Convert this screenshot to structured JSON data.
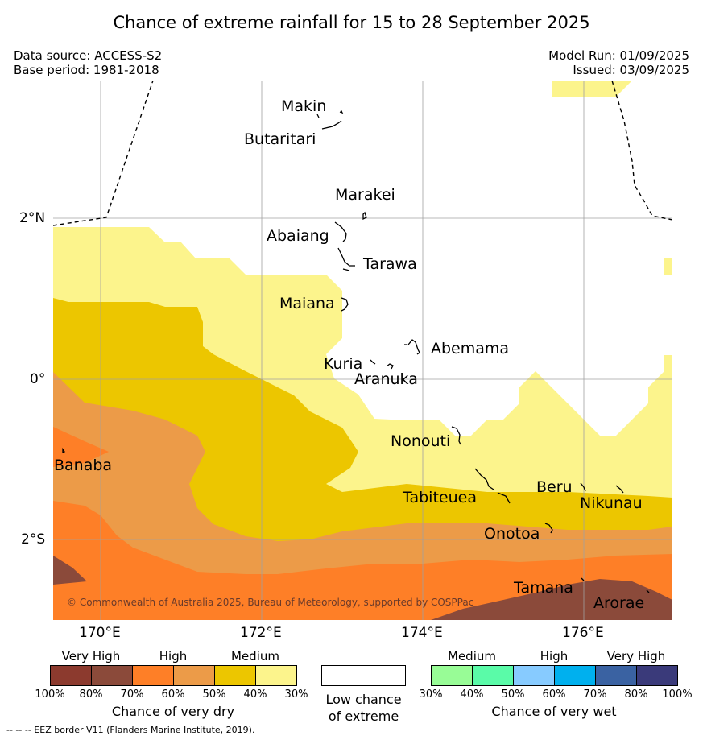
{
  "title": "Chance of extreme rainfall for 15 to 28 September 2025",
  "data_source": "Data source: ACCESS-S2",
  "base_period": "Base period: 1981-2018",
  "model_run": "Model Run: 01/09/2025",
  "issued": "Issued: 03/09/2025",
  "lat_labels": {
    "n2": "2°N",
    "eq": "0°",
    "s2": "2°S"
  },
  "lon_labels": {
    "e170": "170°E",
    "e172": "172°E",
    "e174": "174°E",
    "e176": "176°E"
  },
  "places": {
    "makin": "Makin",
    "butaritari": "Butaritari",
    "marakei": "Marakei",
    "abaiang": "Abaiang",
    "tarawa": "Tarawa",
    "maiana": "Maiana",
    "abemama": "Abemama",
    "kuria": "Kuria",
    "aranuka": "Aranuka",
    "nonouti": "Nonouti",
    "banaba": "Banaba",
    "tabiteuea": "Tabiteuea",
    "beru": "Beru",
    "nikunau": "Nikunau",
    "onotoa": "Onotoa",
    "tamana": "Tamana",
    "arorae": "Arorae"
  },
  "copyright": "© Commonwealth of Australia 2025, Bureau of Meteorology, supported by COSPPac",
  "dry_legend": {
    "categories": {
      "very_high": "Very High",
      "high": "High",
      "medium": "Medium"
    },
    "ticks": [
      "100%",
      "80%",
      "70%",
      "60%",
      "50%",
      "40%",
      "30%"
    ],
    "colors": [
      "#8c3a2e",
      "#8b4a3a",
      "#fe7f27",
      "#ec9b48",
      "#ecc600",
      "#fcf48c"
    ],
    "caption": "Chance of very dry"
  },
  "low_legend": {
    "line1": "Low chance",
    "line2": "of extreme",
    "color": "#ffffff"
  },
  "wet_legend": {
    "categories": {
      "medium": "Medium",
      "high": "High",
      "very_high": "Very High"
    },
    "ticks": [
      "30%",
      "40%",
      "50%",
      "60%",
      "70%",
      "80%",
      "100%"
    ],
    "colors": [
      "#98fc96",
      "#5afba8",
      "#87cbff",
      "#00b0ee",
      "#3a62a2",
      "#3a3a7a"
    ],
    "caption": "Chance of very wet"
  },
  "footnote": "--  --  -- EEZ border V11 (Flanders Marine Institute, 2019)."
}
